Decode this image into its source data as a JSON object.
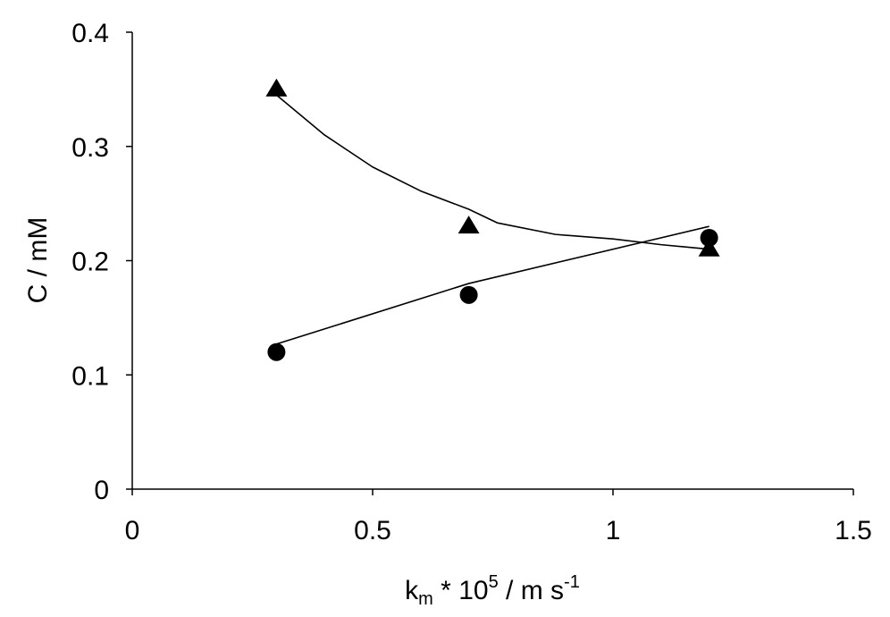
{
  "chart_data": {
    "type": "scatter",
    "xlabel": {
      "k": "k",
      "k_sub": "m",
      "times": " * 10",
      "exp": "5",
      "unit": " / m s",
      "unit_exp": "-1"
    },
    "ylabel": "C / mM",
    "xlim": [
      0,
      1.5
    ],
    "ylim": [
      0,
      0.4
    ],
    "x_ticks": [
      "0",
      "0.5",
      "1",
      "1.5"
    ],
    "y_ticks": [
      "0",
      "0.1",
      "0.2",
      "0.3",
      "0.4"
    ],
    "grid": false,
    "legend": "none",
    "series": [
      {
        "marker": "triangle",
        "x": [
          0.3,
          0.7,
          1.2
        ],
        "y": [
          0.35,
          0.23,
          0.21
        ],
        "fit_curve": {
          "x": [
            0.3,
            0.4,
            0.5,
            0.6,
            0.7,
            0.76,
            0.88,
            1.0,
            1.1,
            1.2
          ],
          "y": [
            0.345,
            0.31,
            0.282,
            0.261,
            0.245,
            0.233,
            0.223,
            0.219,
            0.214,
            0.21
          ]
        }
      },
      {
        "marker": "circle",
        "x": [
          0.3,
          0.7,
          1.2
        ],
        "y": [
          0.12,
          0.17,
          0.22
        ],
        "fit_curve": {
          "x": [
            0.3,
            0.7,
            1.2
          ],
          "y": [
            0.127,
            0.18,
            0.23
          ]
        }
      }
    ],
    "colors": {
      "marker": "#000000",
      "line": "#000000",
      "axis": "#000000"
    }
  }
}
